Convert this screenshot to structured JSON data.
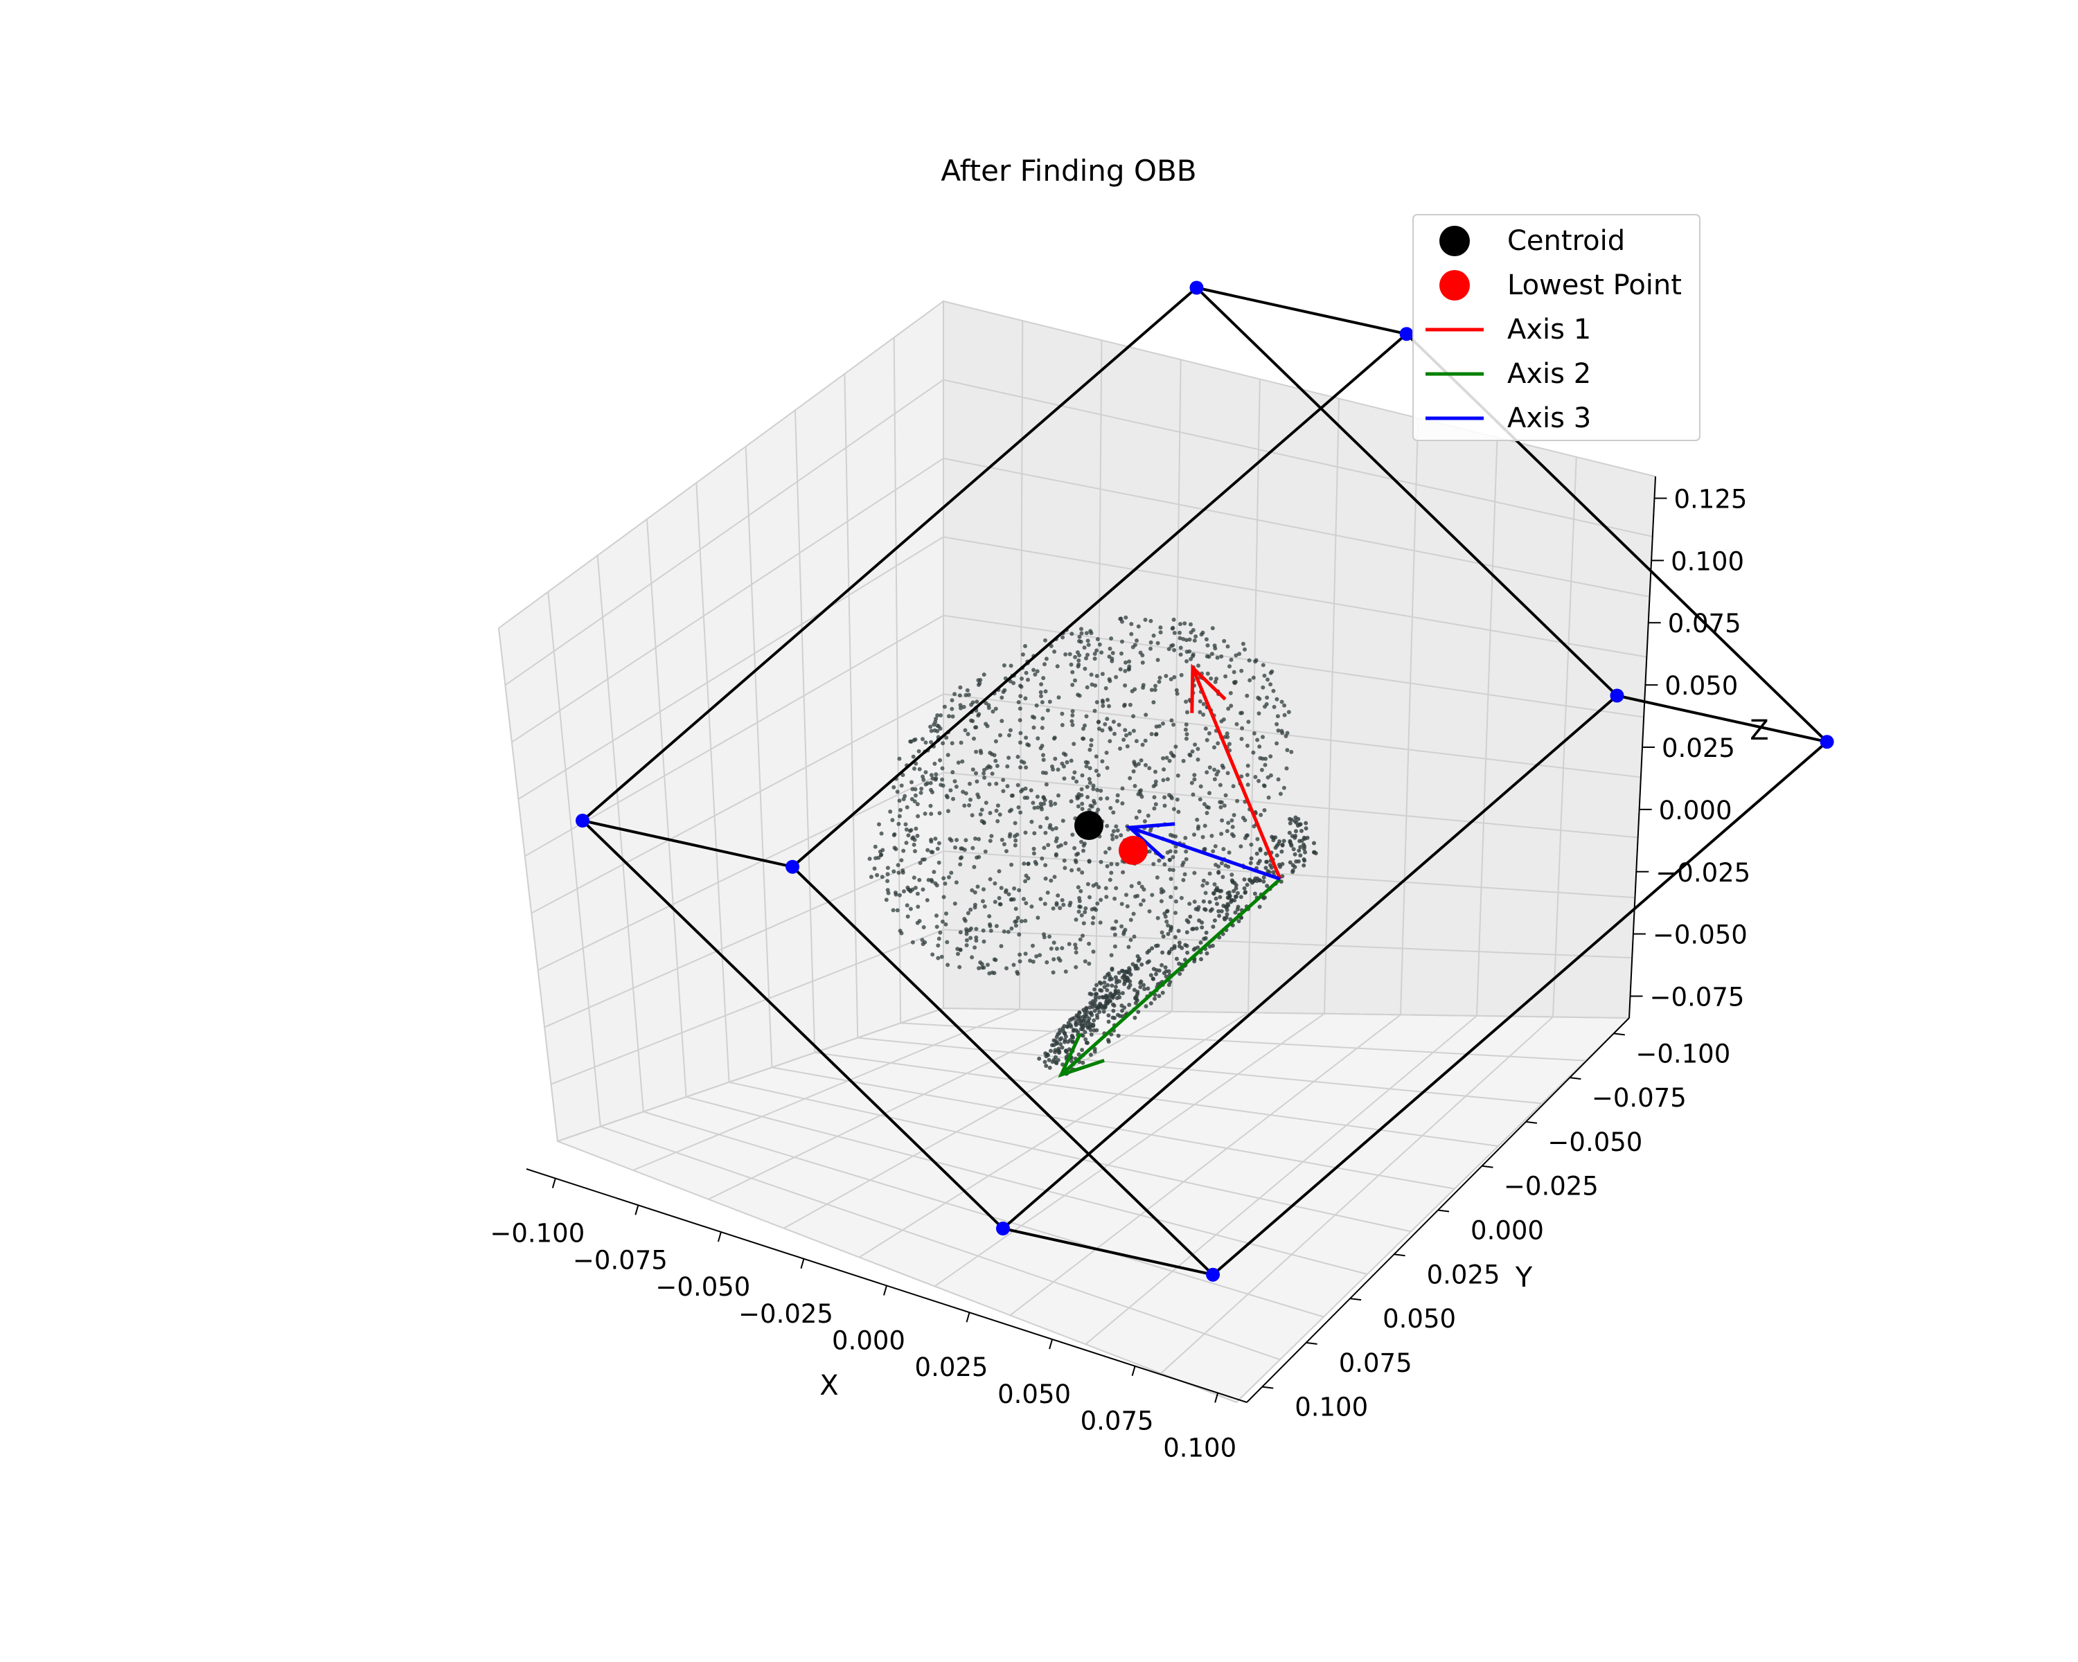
{
  "chart_data": {
    "type": "scatter3d",
    "title": "After Finding OBB",
    "xlabel": "X",
    "ylabel": "Y",
    "zlabel": "Z",
    "xlim": [
      -0.11,
      0.1
    ],
    "ylim": [
      -0.11,
      0.11
    ],
    "zlim": [
      -0.09,
      0.135
    ],
    "x_ticks": [
      "−0.100",
      "−0.075",
      "−0.050",
      "−0.025",
      "0.000",
      "0.025",
      "0.050",
      "0.075",
      "0.100"
    ],
    "y_ticks": [
      "−0.100",
      "−0.075",
      "−0.050",
      "−0.025",
      "0.000",
      "0.025",
      "0.050",
      "0.075",
      "0.100"
    ],
    "z_ticks": [
      "−0.075",
      "−0.050",
      "−0.025",
      "0.000",
      "0.025",
      "0.050",
      "0.075",
      "0.100",
      "0.125"
    ],
    "legend": {
      "placement": "top-right",
      "entries": [
        {
          "label": "Centroid",
          "kind": "marker",
          "color": "#000000"
        },
        {
          "label": "Lowest Point",
          "kind": "marker",
          "color": "#ff0000"
        },
        {
          "label": "Axis 1",
          "kind": "line",
          "color": "#ff0000"
        },
        {
          "label": "Axis 2",
          "kind": "line",
          "color": "#008000"
        },
        {
          "label": "Axis 3",
          "kind": "line",
          "color": "#0000ff"
        }
      ]
    },
    "centroid": {
      "x": 0.005,
      "y": 0.003,
      "z": -0.018
    },
    "lowest_point": {
      "x": 0.018,
      "y": 0.0,
      "z": -0.022
    },
    "axes_vectors": [
      {
        "name": "Axis 1",
        "color": "#ff0000",
        "from": [
          0.018,
          0.0,
          -0.022
        ],
        "to": [
          0.011,
          0.0,
          0.031
        ]
      },
      {
        "name": "Axis 2",
        "color": "#008000",
        "from": [
          0.018,
          0.0,
          -0.022
        ],
        "to": [
          -0.025,
          0.0,
          -0.05
        ]
      },
      {
        "name": "Axis 3",
        "color": "#0000ff",
        "from": [
          0.018,
          0.0,
          -0.022
        ],
        "to": [
          -0.005,
          0.0,
          0.0
        ]
      }
    ],
    "obb_corners": [
      [
        -0.095,
        0.0,
        0.04
      ],
      [
        -0.062,
        0.0,
        0.015
      ],
      [
        0.025,
        0.0,
        0.115
      ],
      [
        0.058,
        0.0,
        0.09
      ],
      [
        -0.04,
        0.0,
        -0.08
      ],
      [
        -0.007,
        0.0,
        -0.105
      ],
      [
        0.08,
        0.0,
        -0.005
      ],
      [
        0.113,
        0.0,
        -0.03
      ]
    ],
    "obb_edges": [
      [
        0,
        1
      ],
      [
        0,
        2
      ],
      [
        1,
        3
      ],
      [
        2,
        3
      ],
      [
        4,
        5
      ],
      [
        4,
        6
      ],
      [
        5,
        7
      ],
      [
        6,
        7
      ],
      [
        0,
        4
      ],
      [
        1,
        5
      ],
      [
        2,
        6
      ],
      [
        3,
        7
      ]
    ],
    "point_cloud_color": "#2f3b3b",
    "corner_color": "#0000ff",
    "box_color": "#000000",
    "grid": true,
    "pane_color": "#f2f2f2"
  }
}
